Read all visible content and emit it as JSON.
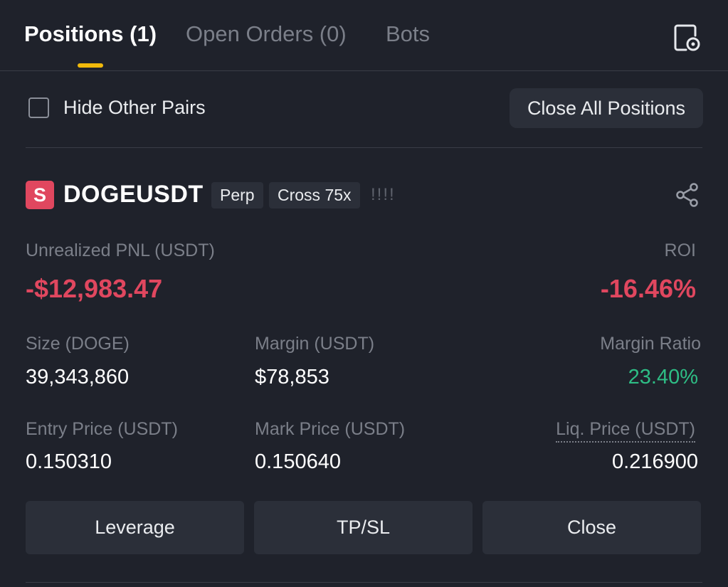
{
  "tabs": [
    {
      "label": "Positions (1)",
      "active": true
    },
    {
      "label": "Open Orders (0)",
      "active": false
    },
    {
      "label": "Bots",
      "active": false
    }
  ],
  "filter": {
    "hide_other_pairs_label": "Hide Other Pairs",
    "hide_other_pairs_checked": false,
    "close_all_label": "Close All Positions"
  },
  "position": {
    "side_badge": "S",
    "symbol": "DOGEUSDT",
    "type_tag": "Perp",
    "margin_tag": "Cross 75x",
    "strength_indicator": "!!!!",
    "unrealized_pnl_label": "Unrealized PNL (USDT)",
    "unrealized_pnl": "-$12,983.47",
    "roi_label": "ROI",
    "roi": "-16.46%",
    "size_label": "Size (DOGE)",
    "size": "39,343,860",
    "margin_label": "Margin (USDT)",
    "margin": "$78,853",
    "margin_ratio_label": "Margin Ratio",
    "margin_ratio": "23.40%",
    "entry_price_label": "Entry Price (USDT)",
    "entry_price": "0.150310",
    "mark_price_label": "Mark Price (USDT)",
    "mark_price": "0.150640",
    "liq_price_label": "Liq. Price (USDT)",
    "liq_price": "0.216900"
  },
  "actions": {
    "leverage_label": "Leverage",
    "tpsl_label": "TP/SL",
    "close_label": "Close"
  },
  "colors": {
    "accent": "#f0b90b",
    "loss": "#e0475f",
    "gain": "#2ebd85",
    "background": "#1f222b",
    "button": "#2b2f39"
  },
  "icons": {
    "corner": "history-document-icon",
    "share": "share-icon",
    "checkbox": "checkbox-unchecked-icon"
  }
}
